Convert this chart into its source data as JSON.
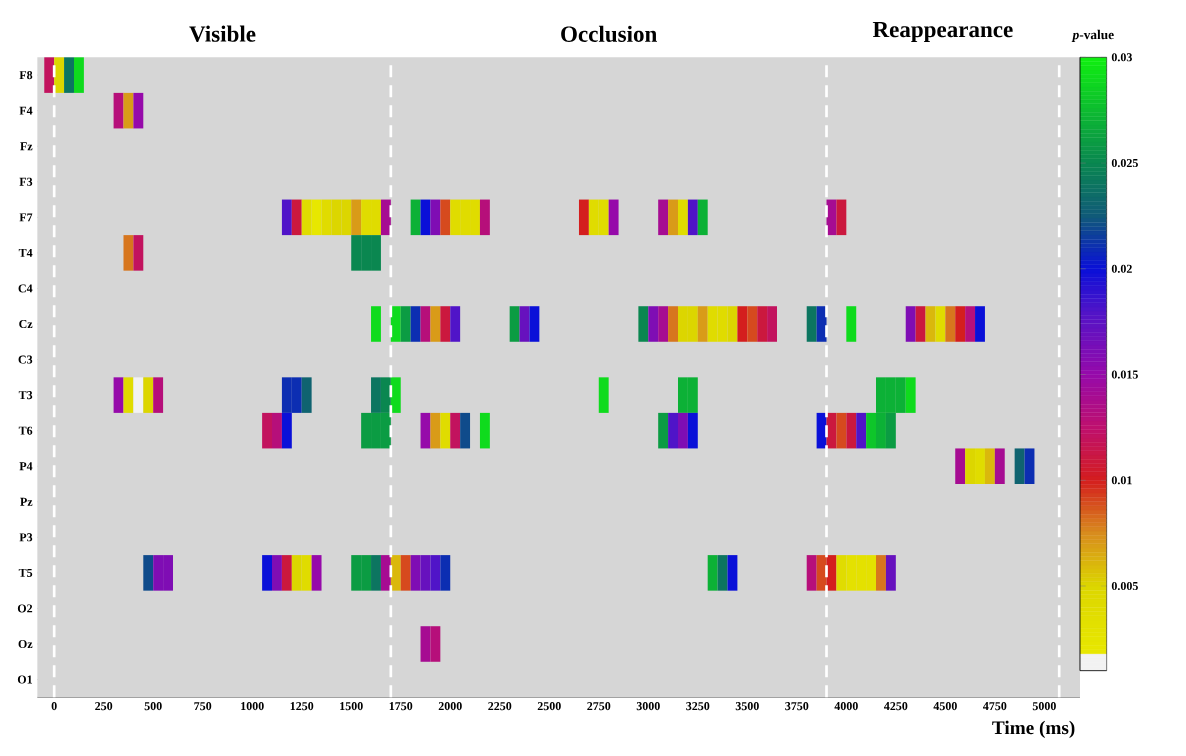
{
  "chart_data": {
    "type": "heatmap",
    "annotations": [
      "Visible",
      "Occlusion",
      "Reappearance"
    ],
    "xlabel": "Time (ms)",
    "clabel": "*p*-value",
    "x": [
      -25,
      25,
      75,
      125,
      175,
      225,
      275,
      325,
      375,
      425,
      475,
      525,
      575,
      625,
      675,
      725,
      775,
      825,
      875,
      925,
      975,
      1025,
      1075,
      1125,
      1175,
      1225,
      1275,
      1325,
      1375,
      1425,
      1475,
      1525,
      1575,
      1625,
      1675,
      1725,
      1775,
      1825,
      1875,
      1925,
      1975,
      2025,
      2075,
      2125,
      2175,
      2225,
      2275,
      2325,
      2375,
      2425,
      2475,
      2525,
      2575,
      2625,
      2675,
      2725,
      2775,
      2825,
      2875,
      2925,
      2975,
      3025,
      3075,
      3125,
      3175,
      3225,
      3275,
      3325,
      3375,
      3425,
      3475,
      3525,
      3575,
      3625,
      3675,
      3725,
      3775,
      3825,
      3875,
      3925,
      3975,
      4025,
      4075,
      4125,
      4175,
      4225,
      4275,
      4325,
      4375,
      4425,
      4475,
      4525,
      4575,
      4625,
      4675,
      4725,
      4775,
      4825,
      4875,
      4925
    ],
    "xlim": [
      -85,
      5180
    ],
    "xticks": [
      0,
      250,
      500,
      750,
      1000,
      1250,
      1500,
      1750,
      2000,
      2250,
      2500,
      2750,
      3000,
      3250,
      3500,
      3750,
      4000,
      4250,
      4500,
      4750,
      5000
    ],
    "y_categories": [
      "F8",
      "F4",
      "Fz",
      "F3",
      "F7",
      "T4",
      "C4",
      "Cz",
      "C3",
      "T3",
      "T6",
      "P4",
      "Pz",
      "P3",
      "T5",
      "O2",
      "Oz",
      "O1"
    ],
    "cells": [
      [
        0.012,
        0.005,
        0.024,
        0.029,
        null,
        null,
        null,
        null,
        null,
        null,
        null,
        null,
        null,
        null,
        null,
        null,
        null,
        null,
        null,
        null,
        null,
        null,
        null,
        null,
        null,
        null,
        null,
        null,
        null,
        null,
        null,
        null,
        null,
        null,
        null,
        null,
        null,
        null,
        null,
        null,
        null,
        null,
        null,
        null,
        null,
        null,
        null,
        null,
        null,
        null,
        null,
        null,
        null,
        null,
        null,
        null,
        null,
        null,
        null,
        null,
        null,
        null,
        null,
        null,
        null,
        null,
        null,
        null,
        null,
        null,
        null,
        null,
        null,
        null,
        null,
        null,
        null,
        null,
        null,
        null,
        null,
        null,
        null,
        null,
        null,
        null,
        null,
        null,
        null,
        null,
        null,
        null,
        null,
        null,
        null,
        null,
        null,
        null,
        null,
        null
      ],
      [
        null,
        null,
        null,
        null,
        null,
        null,
        null,
        0.013,
        0.007,
        0.015,
        null,
        null,
        null,
        null,
        null,
        null,
        null,
        null,
        null,
        null,
        null,
        null,
        null,
        null,
        null,
        null,
        null,
        null,
        null,
        null,
        null,
        null,
        null,
        null,
        null,
        null,
        null,
        null,
        null,
        null,
        null,
        null,
        null,
        null,
        null,
        null,
        null,
        null,
        null,
        null,
        null,
        null,
        null,
        null,
        null,
        null,
        null,
        null,
        null,
        null,
        null,
        null,
        null,
        null,
        null,
        null,
        null,
        null,
        null,
        null,
        null,
        null,
        null,
        null,
        null,
        null,
        null,
        null,
        null,
        null,
        null,
        null,
        null,
        null,
        null,
        null,
        null,
        null,
        null,
        null,
        null,
        null,
        null,
        null,
        null,
        null,
        null,
        null,
        null,
        null
      ],
      [
        null,
        null,
        null,
        null,
        null,
        null,
        null,
        null,
        null,
        null,
        null,
        null,
        null,
        null,
        null,
        null,
        null,
        null,
        null,
        null,
        null,
        null,
        null,
        null,
        null,
        null,
        null,
        null,
        null,
        null,
        null,
        null,
        null,
        null,
        null,
        null,
        null,
        null,
        null,
        null,
        null,
        null,
        null,
        null,
        null,
        null,
        null,
        null,
        null,
        null,
        null,
        null,
        null,
        null,
        null,
        null,
        null,
        null,
        null,
        null,
        null,
        null,
        null,
        null,
        null,
        null,
        null,
        null,
        null,
        null,
        null,
        null,
        null,
        null,
        null,
        null,
        null,
        null,
        null,
        null,
        null,
        null,
        null,
        null,
        null,
        null,
        null,
        null,
        null,
        null,
        null,
        null,
        null,
        null,
        null,
        null,
        null,
        null,
        null,
        null
      ],
      [
        null,
        null,
        null,
        null,
        null,
        null,
        null,
        null,
        null,
        null,
        null,
        null,
        null,
        null,
        null,
        null,
        null,
        null,
        null,
        null,
        null,
        null,
        null,
        null,
        null,
        null,
        null,
        null,
        null,
        null,
        null,
        null,
        null,
        null,
        null,
        null,
        null,
        null,
        null,
        null,
        null,
        null,
        null,
        null,
        null,
        null,
        null,
        null,
        null,
        null,
        null,
        null,
        null,
        null,
        null,
        null,
        null,
        null,
        null,
        null,
        null,
        null,
        null,
        null,
        null,
        null,
        null,
        null,
        null,
        null,
        null,
        null,
        null,
        null,
        null,
        null,
        null,
        null,
        null,
        null,
        null,
        null,
        null,
        null,
        null,
        null,
        null,
        null,
        null,
        null,
        null,
        null,
        null,
        null,
        null,
        null,
        null,
        null,
        null,
        null
      ],
      [
        null,
        null,
        null,
        null,
        null,
        null,
        null,
        null,
        null,
        null,
        null,
        null,
        null,
        null,
        null,
        null,
        null,
        null,
        null,
        null,
        null,
        null,
        null,
        null,
        0.018,
        0.011,
        0.004,
        0.002,
        0.004,
        0.005,
        0.005,
        0.007,
        0.004,
        0.004,
        0.014,
        null,
        null,
        0.027,
        0.02,
        0.016,
        0.009,
        0.004,
        0.004,
        0.004,
        0.013,
        null,
        null,
        null,
        null,
        null,
        null,
        null,
        null,
        null,
        0.01,
        0.004,
        0.004,
        0.015,
        null,
        null,
        null,
        null,
        0.014,
        0.007,
        0.004,
        0.018,
        0.027,
        null,
        null,
        null,
        null,
        null,
        null,
        null,
        null,
        null,
        null,
        null,
        null,
        0.014,
        0.011,
        null,
        null,
        null,
        null,
        null,
        null,
        null,
        null,
        null,
        null,
        null,
        null,
        null,
        null,
        null,
        null,
        null,
        null,
        null
      ],
      [
        null,
        null,
        null,
        null,
        null,
        null,
        null,
        null,
        0.008,
        0.012,
        null,
        null,
        null,
        null,
        null,
        null,
        null,
        null,
        null,
        null,
        null,
        null,
        null,
        null,
        null,
        null,
        null,
        null,
        null,
        null,
        null,
        0.025,
        0.025,
        0.025,
        null,
        null,
        null,
        null,
        null,
        null,
        null,
        null,
        null,
        null,
        null,
        null,
        null,
        null,
        null,
        null,
        null,
        null,
        null,
        null,
        null,
        null,
        null,
        null,
        null,
        null,
        null,
        null,
        null,
        null,
        null,
        null,
        null,
        null,
        null,
        null,
        null,
        null,
        null,
        null,
        null,
        null,
        null,
        null,
        null,
        null,
        null,
        null,
        null,
        null,
        null,
        null,
        null,
        null,
        null,
        null,
        null,
        null,
        null,
        null,
        null,
        null,
        null,
        null,
        null,
        null
      ],
      [
        null,
        null,
        null,
        null,
        null,
        null,
        null,
        null,
        null,
        null,
        null,
        null,
        null,
        null,
        null,
        null,
        null,
        null,
        null,
        null,
        null,
        null,
        null,
        null,
        null,
        null,
        null,
        null,
        null,
        null,
        null,
        null,
        null,
        null,
        null,
        null,
        null,
        null,
        null,
        null,
        null,
        null,
        null,
        null,
        null,
        null,
        null,
        null,
        null,
        null,
        null,
        null,
        null,
        null,
        null,
        null,
        null,
        null,
        null,
        null,
        null,
        null,
        null,
        null,
        null,
        null,
        null,
        null,
        null,
        null,
        null,
        null,
        null,
        null,
        null,
        null,
        null,
        null,
        null,
        null,
        null,
        null,
        null,
        null,
        null,
        null,
        null,
        null,
        null,
        null,
        null,
        null,
        null,
        null,
        null,
        null,
        null,
        null,
        null,
        null
      ],
      [
        null,
        null,
        null,
        null,
        null,
        null,
        null,
        null,
        null,
        null,
        null,
        null,
        null,
        null,
        null,
        null,
        null,
        null,
        null,
        null,
        null,
        null,
        null,
        null,
        null,
        null,
        null,
        null,
        null,
        null,
        null,
        null,
        null,
        0.029,
        null,
        0.029,
        0.026,
        0.021,
        0.013,
        0.007,
        0.011,
        0.018,
        null,
        null,
        null,
        null,
        null,
        0.026,
        0.017,
        0.02,
        null,
        null,
        null,
        null,
        null,
        null,
        null,
        null,
        null,
        null,
        0.025,
        0.016,
        0.014,
        0.008,
        0.005,
        0.005,
        0.007,
        0.004,
        0.004,
        0.005,
        0.01,
        0.009,
        0.011,
        0.012,
        null,
        null,
        null,
        0.024,
        0.021,
        null,
        null,
        0.029,
        null,
        null,
        null,
        null,
        null,
        0.016,
        0.011,
        0.006,
        0.004,
        0.008,
        0.01,
        0.013,
        0.02,
        null,
        null,
        null,
        null,
        null
      ],
      [
        null,
        null,
        null,
        null,
        null,
        null,
        null,
        null,
        null,
        null,
        null,
        null,
        null,
        null,
        null,
        null,
        null,
        null,
        null,
        null,
        null,
        null,
        null,
        null,
        null,
        null,
        null,
        null,
        null,
        null,
        null,
        null,
        null,
        null,
        null,
        null,
        null,
        null,
        null,
        null,
        null,
        null,
        null,
        null,
        null,
        null,
        null,
        null,
        null,
        null,
        null,
        null,
        null,
        null,
        null,
        null,
        null,
        null,
        null,
        null,
        null,
        null,
        null,
        null,
        null,
        null,
        null,
        null,
        null,
        null,
        null,
        null,
        null,
        null,
        null,
        null,
        null,
        null,
        null,
        null,
        null,
        null,
        null,
        null,
        null,
        null,
        null,
        null,
        null,
        null,
        null,
        null,
        null,
        null,
        null,
        null,
        null,
        null,
        null,
        null
      ],
      [
        null,
        null,
        null,
        null,
        null,
        null,
        null,
        0.015,
        0.004,
        0.0015,
        0.005,
        0.013,
        null,
        null,
        null,
        null,
        null,
        null,
        null,
        null,
        null,
        null,
        null,
        null,
        0.021,
        0.021,
        0.023,
        null,
        null,
        null,
        null,
        null,
        null,
        0.024,
        0.025,
        0.029,
        null,
        null,
        null,
        null,
        null,
        null,
        null,
        null,
        null,
        null,
        null,
        null,
        null,
        null,
        null,
        null,
        null,
        null,
        null,
        null,
        0.029,
        null,
        null,
        null,
        null,
        null,
        null,
        null,
        0.027,
        0.027,
        null,
        null,
        null,
        null,
        null,
        null,
        null,
        null,
        null,
        null,
        null,
        null,
        null,
        null,
        null,
        null,
        null,
        null,
        0.027,
        0.027,
        0.027,
        0.029,
        null,
        null,
        null,
        null,
        null,
        null,
        null,
        null,
        null,
        null,
        null,
        null
      ],
      [
        null,
        null,
        null,
        null,
        null,
        null,
        null,
        null,
        null,
        null,
        null,
        null,
        null,
        null,
        null,
        null,
        null,
        null,
        null,
        null,
        null,
        null,
        0.012,
        0.013,
        0.02,
        null,
        null,
        null,
        null,
        null,
        null,
        null,
        0.026,
        0.026,
        0.026,
        null,
        null,
        null,
        0.015,
        0.007,
        0.004,
        0.012,
        0.022,
        null,
        0.029,
        null,
        null,
        null,
        null,
        null,
        null,
        null,
        null,
        null,
        null,
        null,
        null,
        null,
        null,
        null,
        null,
        null,
        0.026,
        0.018,
        0.016,
        0.02,
        null,
        null,
        null,
        null,
        null,
        null,
        null,
        null,
        null,
        null,
        null,
        null,
        0.02,
        0.011,
        0.009,
        0.011,
        0.018,
        0.028,
        0.027,
        0.026,
        null,
        null,
        null,
        null,
        null,
        null,
        null,
        null,
        null,
        null,
        null,
        null,
        null,
        null
      ],
      [
        null,
        null,
        null,
        null,
        null,
        null,
        null,
        null,
        null,
        null,
        null,
        null,
        null,
        null,
        null,
        null,
        null,
        null,
        null,
        null,
        null,
        null,
        null,
        null,
        null,
        null,
        null,
        null,
        null,
        null,
        null,
        null,
        null,
        null,
        null,
        null,
        null,
        null,
        null,
        null,
        null,
        null,
        null,
        null,
        null,
        null,
        null,
        null,
        null,
        null,
        null,
        null,
        null,
        null,
        null,
        null,
        null,
        null,
        null,
        null,
        null,
        null,
        null,
        null,
        null,
        null,
        null,
        null,
        null,
        null,
        null,
        null,
        null,
        null,
        null,
        null,
        null,
        null,
        null,
        null,
        null,
        null,
        null,
        null,
        null,
        null,
        null,
        null,
        null,
        null,
        null,
        null,
        0.014,
        0.005,
        0.004,
        0.006,
        0.014,
        null,
        0.023,
        0.021
      ],
      [
        null,
        null,
        null,
        null,
        null,
        null,
        null,
        null,
        null,
        null,
        null,
        null,
        null,
        null,
        null,
        null,
        null,
        null,
        null,
        null,
        null,
        null,
        null,
        null,
        null,
        null,
        null,
        null,
        null,
        null,
        null,
        null,
        null,
        null,
        null,
        null,
        null,
        null,
        null,
        null,
        null,
        null,
        null,
        null,
        null,
        null,
        null,
        null,
        null,
        null,
        null,
        null,
        null,
        null,
        null,
        null,
        null,
        null,
        null,
        null,
        null,
        null,
        null,
        null,
        null,
        null,
        null,
        null,
        null,
        null,
        null,
        null,
        null,
        null,
        null,
        null,
        null,
        null,
        null,
        null,
        null,
        null,
        null,
        null,
        null,
        null,
        null,
        null,
        null,
        null,
        null,
        null,
        null,
        null,
        null,
        null,
        null,
        null,
        null,
        null
      ],
      [
        null,
        null,
        null,
        null,
        null,
        null,
        null,
        null,
        null,
        null,
        null,
        null,
        null,
        null,
        null,
        null,
        null,
        null,
        null,
        null,
        null,
        null,
        null,
        null,
        null,
        null,
        null,
        null,
        null,
        null,
        null,
        null,
        null,
        null,
        null,
        null,
        null,
        null,
        null,
        null,
        null,
        null,
        null,
        null,
        null,
        null,
        null,
        null,
        null,
        null,
        null,
        null,
        null,
        null,
        null,
        null,
        null,
        null,
        null,
        null,
        null,
        null,
        null,
        null,
        null,
        null,
        null,
        null,
        null,
        null,
        null,
        null,
        null,
        null,
        null,
        null,
        null,
        null,
        null,
        null,
        null,
        null,
        null,
        null,
        null,
        null,
        null,
        null,
        null,
        null,
        null,
        null,
        null,
        null,
        null,
        null,
        null,
        null,
        null,
        null
      ],
      [
        null,
        null,
        null,
        null,
        null,
        null,
        null,
        null,
        null,
        null,
        0.022,
        0.016,
        0.016,
        null,
        null,
        null,
        null,
        null,
        null,
        null,
        null,
        null,
        0.02,
        0.016,
        0.011,
        0.005,
        0.004,
        0.015,
        null,
        null,
        null,
        0.026,
        0.026,
        0.024,
        0.014,
        0.006,
        0.009,
        0.016,
        0.017,
        0.018,
        0.021,
        null,
        null,
        null,
        null,
        null,
        null,
        null,
        null,
        null,
        null,
        null,
        null,
        null,
        null,
        null,
        null,
        null,
        null,
        null,
        null,
        null,
        null,
        null,
        null,
        null,
        null,
        0.027,
        0.024,
        0.02,
        null,
        null,
        null,
        null,
        null,
        null,
        null,
        0.013,
        0.009,
        0.01,
        0.004,
        0.003,
        0.003,
        0.003,
        0.008,
        0.017,
        null,
        null,
        null,
        null,
        null,
        null,
        null,
        null,
        null,
        null,
        null,
        null,
        null,
        null
      ],
      [
        null,
        null,
        null,
        null,
        null,
        null,
        null,
        null,
        null,
        null,
        null,
        null,
        null,
        null,
        null,
        null,
        null,
        null,
        null,
        null,
        null,
        null,
        null,
        null,
        null,
        null,
        null,
        null,
        null,
        null,
        null,
        null,
        null,
        null,
        null,
        null,
        null,
        null,
        null,
        null,
        null,
        null,
        null,
        null,
        null,
        null,
        null,
        null,
        null,
        null,
        null,
        null,
        null,
        null,
        null,
        null,
        null,
        null,
        null,
        null,
        null,
        null,
        null,
        null,
        null,
        null,
        null,
        null,
        null,
        null,
        null,
        null,
        null,
        null,
        null,
        null,
        null,
        null,
        null,
        null,
        null,
        null,
        null,
        null,
        null,
        null,
        null,
        null,
        null,
        null,
        null,
        null,
        null,
        null,
        null,
        null,
        null,
        null,
        null,
        null
      ],
      [
        null,
        null,
        null,
        null,
        null,
        null,
        null,
        null,
        null,
        null,
        null,
        null,
        null,
        null,
        null,
        null,
        null,
        null,
        null,
        null,
        null,
        null,
        null,
        null,
        null,
        null,
        null,
        null,
        null,
        null,
        null,
        null,
        null,
        null,
        null,
        null,
        null,
        null,
        0.014,
        0.013,
        null,
        null,
        null,
        null,
        null,
        null,
        null,
        null,
        null,
        null,
        null,
        null,
        null,
        null,
        null,
        null,
        null,
        null,
        null,
        null,
        null,
        null,
        null,
        null,
        null,
        null,
        null,
        null,
        null,
        null,
        null,
        null,
        null,
        null,
        null,
        null,
        null,
        null,
        null,
        null,
        null,
        null,
        null,
        null,
        null,
        null,
        null,
        null,
        null,
        null,
        null,
        null,
        null,
        null,
        null,
        null,
        null,
        null,
        null,
        null
      ],
      [
        null,
        null,
        null,
        null,
        null,
        null,
        null,
        null,
        null,
        null,
        null,
        null,
        null,
        null,
        null,
        null,
        null,
        null,
        null,
        null,
        null,
        null,
        null,
        null,
        null,
        null,
        null,
        null,
        null,
        null,
        null,
        null,
        null,
        null,
        null,
        null,
        null,
        null,
        null,
        null,
        null,
        null,
        null,
        null,
        null,
        null,
        null,
        null,
        null,
        null,
        null,
        null,
        null,
        null,
        null,
        null,
        null,
        null,
        null,
        null,
        null,
        null,
        null,
        null,
        null,
        null,
        null,
        null,
        null,
        null,
        null,
        null,
        null,
        null,
        null,
        null,
        null,
        null,
        null,
        null,
        null,
        null,
        null,
        null,
        null,
        null,
        null,
        null,
        null,
        null,
        null,
        null,
        null,
        null,
        null,
        null,
        null,
        null,
        null,
        null
      ]
    ],
    "clim": [
      0.001,
      0.03
    ],
    "cticks": [
      0.005,
      0.01,
      0.015,
      0.02,
      0.025,
      0.03
    ],
    "ref_lines": [
      {
        "axis": "x",
        "value": 0,
        "color": "#ffffff",
        "line_style": "dashed"
      },
      {
        "axis": "x",
        "value": 1700,
        "color": "#ffffff",
        "line_style": "dashed"
      },
      {
        "axis": "x",
        "value": 3900,
        "color": "#ffffff",
        "line_style": "dashed"
      },
      {
        "axis": "x",
        "value": 5075,
        "color": "#ffffff",
        "line_style": "dashed"
      }
    ]
  }
}
